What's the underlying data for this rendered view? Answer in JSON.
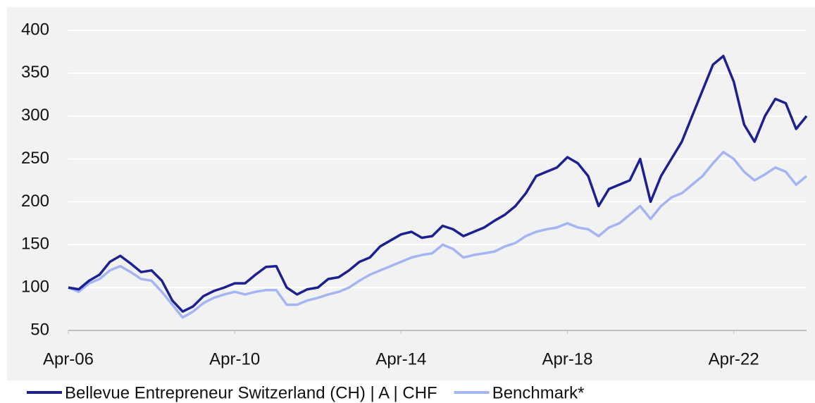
{
  "chart_data": {
    "type": "line",
    "x": [
      "2006-04",
      "2006-07",
      "2006-10",
      "2007-01",
      "2007-04",
      "2007-07",
      "2007-10",
      "2008-01",
      "2008-04",
      "2008-07",
      "2008-10",
      "2009-01",
      "2009-04",
      "2009-07",
      "2009-10",
      "2010-01",
      "2010-04",
      "2010-07",
      "2010-10",
      "2011-01",
      "2011-04",
      "2011-07",
      "2011-10",
      "2012-01",
      "2012-04",
      "2012-07",
      "2012-10",
      "2013-01",
      "2013-04",
      "2013-07",
      "2013-10",
      "2014-01",
      "2014-04",
      "2014-07",
      "2014-10",
      "2015-01",
      "2015-04",
      "2015-07",
      "2015-10",
      "2016-01",
      "2016-04",
      "2016-07",
      "2016-10",
      "2017-01",
      "2017-04",
      "2017-07",
      "2017-10",
      "2018-01",
      "2018-04",
      "2018-07",
      "2018-10",
      "2019-01",
      "2019-04",
      "2019-07",
      "2019-10",
      "2020-01",
      "2020-04",
      "2020-07",
      "2020-10",
      "2021-01",
      "2021-04",
      "2021-07",
      "2021-10",
      "2022-01",
      "2022-04",
      "2022-07",
      "2022-10",
      "2023-01",
      "2023-04",
      "2023-07",
      "2023-10",
      "2024-01"
    ],
    "series": [
      {
        "name": "Bellevue Entrepreneur Switzerland (CH) | A | CHF",
        "color": "#1c2090",
        "values": [
          100,
          98,
          108,
          115,
          130,
          137,
          128,
          118,
          120,
          108,
          85,
          72,
          78,
          90,
          96,
          100,
          105,
          105,
          115,
          124,
          125,
          100,
          92,
          98,
          100,
          110,
          112,
          120,
          130,
          135,
          148,
          155,
          162,
          165,
          158,
          160,
          172,
          168,
          160,
          165,
          170,
          178,
          185,
          195,
          210,
          230,
          235,
          240,
          252,
          245,
          230,
          195,
          215,
          220,
          225,
          250,
          200,
          230,
          250,
          270,
          300,
          330,
          360,
          370,
          340,
          290,
          270,
          300,
          320,
          315,
          285,
          300
        ]
      },
      {
        "name": "Benchmark*",
        "color": "#a3b5f3",
        "values": [
          100,
          95,
          105,
          110,
          120,
          125,
          118,
          110,
          108,
          95,
          80,
          65,
          72,
          82,
          88,
          92,
          95,
          92,
          95,
          97,
          97,
          80,
          80,
          85,
          88,
          92,
          95,
          100,
          108,
          115,
          120,
          125,
          130,
          135,
          138,
          140,
          150,
          145,
          135,
          138,
          140,
          142,
          148,
          152,
          160,
          165,
          168,
          170,
          175,
          170,
          168,
          160,
          170,
          175,
          185,
          195,
          180,
          195,
          205,
          210,
          220,
          230,
          245,
          258,
          250,
          235,
          225,
          232,
          240,
          235,
          220,
          230
        ]
      }
    ],
    "xlim": [
      "2006-04",
      "2024-01"
    ],
    "xticks": [
      {
        "value": "2006-04",
        "label": "Apr-06"
      },
      {
        "value": "2010-04",
        "label": "Apr-10"
      },
      {
        "value": "2014-04",
        "label": "Apr-14"
      },
      {
        "value": "2018-04",
        "label": "Apr-18"
      },
      {
        "value": "2022-04",
        "label": "Apr-22"
      }
    ],
    "ylim": [
      50,
      400
    ],
    "yticks": [
      50,
      100,
      150,
      200,
      250,
      300,
      350,
      400
    ],
    "grid": true,
    "legend": "bottom"
  }
}
